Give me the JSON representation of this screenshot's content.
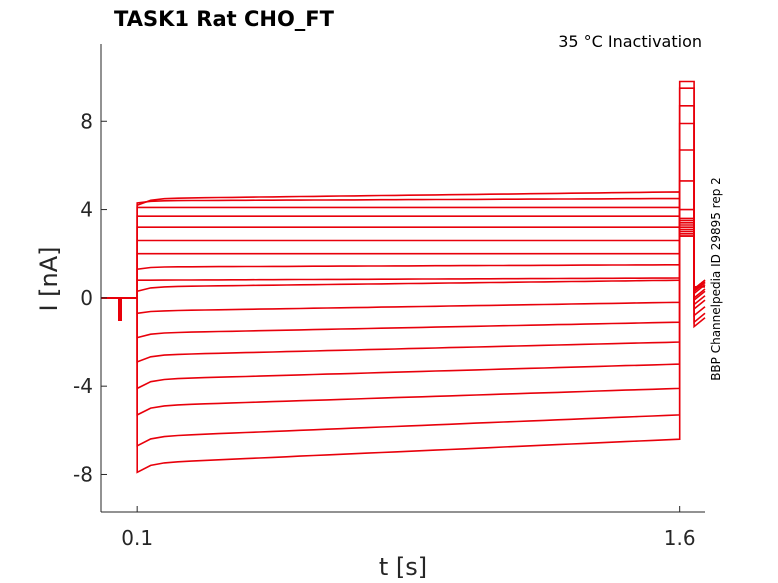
{
  "chart_data": {
    "type": "line",
    "title": "TASK1  Rat  CHO_FT",
    "subtitle": "35 °C  Inactivation",
    "side_label": "BBP Channelpedia ID 29895 rep 2",
    "xlabel": "t [s]",
    "ylabel": "I [nA]",
    "xlim": [
      0.0,
      1.67
    ],
    "ylim": [
      -9.7,
      11.5
    ],
    "xticks": [
      0.1,
      1.6
    ],
    "xtick_labels": [
      "0.1",
      "1.6"
    ],
    "yticks": [
      -8,
      -4,
      0,
      4,
      8
    ],
    "ytick_labels": [
      "-8",
      "-4",
      "0",
      "4",
      "8"
    ],
    "grid": false,
    "color": "#e8000b",
    "times": {
      "pre_pulse": [
        0.05,
        0.055
      ],
      "step_start": 0.1,
      "step_end": 1.6,
      "tail_end": 1.64,
      "end": 1.67
    },
    "series": [
      {
        "start": -7.9,
        "plateau": -7.5,
        "end": -6.4,
        "tail": 9.8,
        "tail_end": -1.3
      },
      {
        "start": -6.7,
        "plateau": -6.3,
        "end": -5.3,
        "tail": 9.5,
        "tail_end": -1.1
      },
      {
        "start": -5.3,
        "plateau": -4.9,
        "end": -4.1,
        "tail": 8.7,
        "tail_end": -0.8
      },
      {
        "start": -4.1,
        "plateau": -3.7,
        "end": -3.0,
        "tail": 7.9,
        "tail_end": -0.5
      },
      {
        "start": -2.9,
        "plateau": -2.6,
        "end": -2.0,
        "tail": 6.7,
        "tail_end": -0.3
      },
      {
        "start": -1.8,
        "plateau": -1.6,
        "end": -1.1,
        "tail": 5.3,
        "tail_end": -0.1
      },
      {
        "start": -0.7,
        "plateau": -0.6,
        "end": -0.2,
        "tail": 4.0,
        "tail_end": 0.0
      },
      {
        "start": 0.3,
        "plateau": 0.5,
        "end": 0.8,
        "tail": 3.6,
        "tail_end": 0.2
      },
      {
        "start": 0.8,
        "plateau": 0.8,
        "end": 0.9,
        "tail": 3.5,
        "tail_end": 0.3
      },
      {
        "start": 1.3,
        "plateau": 1.4,
        "end": 1.5,
        "tail": 3.4,
        "tail_end": 0.3
      },
      {
        "start": 2.0,
        "plateau": 2.0,
        "end": 2.0,
        "tail": 3.3,
        "tail_end": 0.3
      },
      {
        "start": 2.6,
        "plateau": 2.6,
        "end": 2.6,
        "tail": 3.2,
        "tail_end": 0.4
      },
      {
        "start": 3.2,
        "plateau": 3.2,
        "end": 3.2,
        "tail": 3.1,
        "tail_end": 0.4
      },
      {
        "start": 3.7,
        "plateau": 3.7,
        "end": 3.7,
        "tail": 3.0,
        "tail_end": 0.4
      },
      {
        "start": 4.1,
        "plateau": 4.1,
        "end": 4.1,
        "tail": 2.9,
        "tail_end": 0.4
      },
      {
        "start": 4.3,
        "plateau": 4.4,
        "end": 4.5,
        "tail": 2.8,
        "tail_end": 0.5
      },
      {
        "start": 4.2,
        "plateau": 4.5,
        "end": 4.8,
        "tail": 2.8,
        "tail_end": 0.5
      }
    ]
  }
}
